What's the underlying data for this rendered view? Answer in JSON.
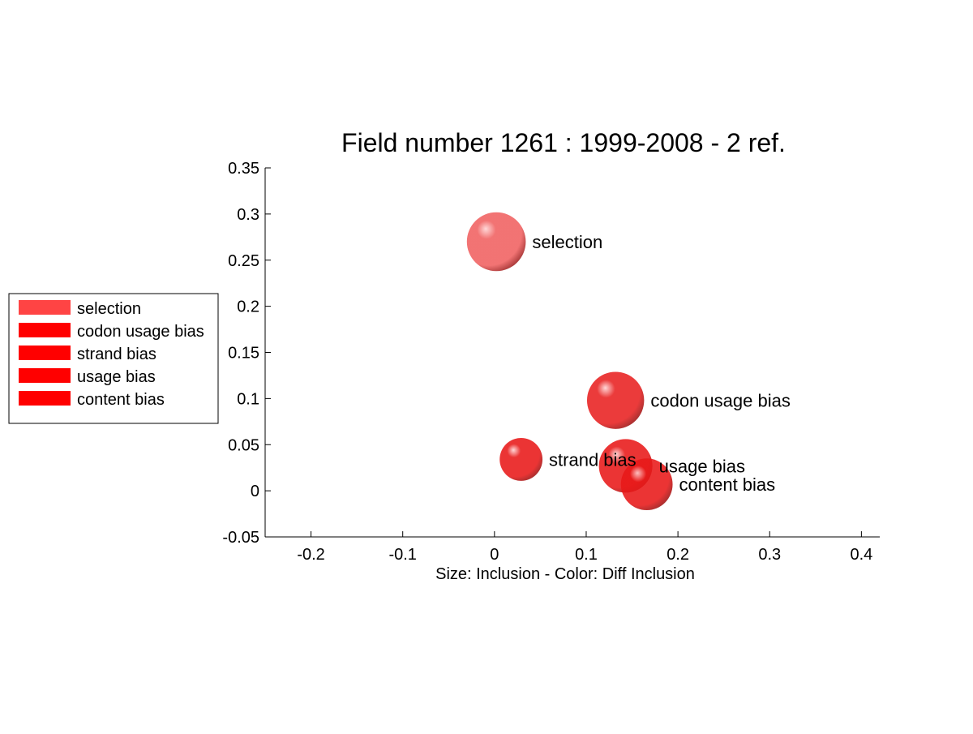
{
  "chart_data": {
    "type": "scatter",
    "title": "Field number 1261 : 1999-2008  - 2 ref.",
    "xlabel": "Size: Inclusion - Color: Diff Inclusion",
    "ylabel": "",
    "xlim": [
      -0.25,
      0.42
    ],
    "ylim": [
      -0.05,
      0.35
    ],
    "xticks": [
      -0.2,
      -0.1,
      0,
      0.1,
      0.2,
      0.3,
      0.4
    ],
    "xtick_labels": [
      "-0.2",
      "-0.1",
      "0",
      "0.1",
      "0.2",
      "0.3",
      "0.4"
    ],
    "yticks": [
      -0.05,
      0,
      0.05,
      0.1,
      0.15,
      0.2,
      0.25,
      0.3,
      0.35
    ],
    "ytick_labels": [
      "-0.05",
      "0",
      "0.05",
      "0.1",
      "0.15",
      "0.2",
      "0.25",
      "0.3",
      "0.35"
    ],
    "grid": false,
    "legend_placement": "left, outside plot",
    "points": [
      {
        "label": "selection",
        "x": 0.002,
        "y": 0.27,
        "size": 0.33,
        "color": "#f06060"
      },
      {
        "label": "codon usage bias",
        "x": 0.132,
        "y": 0.098,
        "size": 0.32,
        "color": "#e82020"
      },
      {
        "label": "strand bias",
        "x": 0.029,
        "y": 0.034,
        "size": 0.24,
        "color": "#e81818"
      },
      {
        "label": "usage bias",
        "x": 0.143,
        "y": 0.027,
        "size": 0.3,
        "color": "#e81818"
      },
      {
        "label": "content bias",
        "x": 0.166,
        "y": 0.007,
        "size": 0.29,
        "color": "#e81818"
      }
    ],
    "legend": [
      {
        "label": "selection",
        "color": "#ff4444"
      },
      {
        "label": "codon usage bias",
        "color": "#ff0000"
      },
      {
        "label": "strand bias",
        "color": "#ff0000"
      },
      {
        "label": "usage bias",
        "color": "#ff0000"
      },
      {
        "label": "content bias",
        "color": "#ff0000"
      }
    ]
  }
}
